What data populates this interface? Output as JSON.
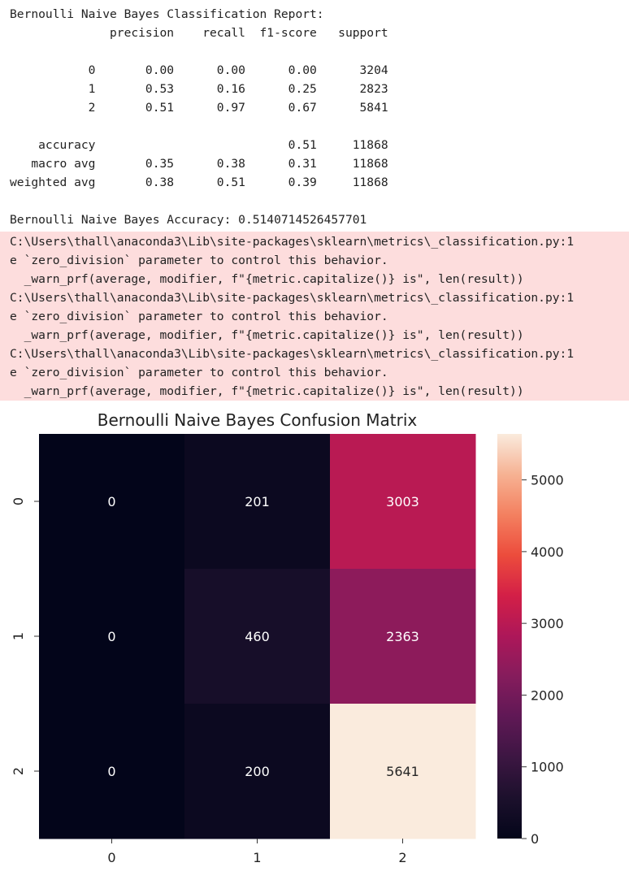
{
  "report": {
    "lines": [
      "Bernoulli Naive Bayes Classification Report:",
      "              precision    recall  f1-score   support",
      "",
      "           0       0.00      0.00      0.00      3204",
      "           1       0.53      0.16      0.25      2823",
      "           2       0.51      0.97      0.67      5841",
      "",
      "    accuracy                           0.51     11868",
      "   macro avg       0.35      0.38      0.31     11868",
      "weighted avg       0.38      0.51      0.39     11868",
      "",
      "Bernoulli Naive Bayes Accuracy: 0.5140714526457701"
    ]
  },
  "warnings": {
    "lines": [
      "C:\\Users\\thall\\anaconda3\\Lib\\site-packages\\sklearn\\metrics\\_classification.py:1",
      "e `zero_division` parameter to control this behavior.",
      "  _warn_prf(average, modifier, f\"{metric.capitalize()} is\", len(result))",
      "C:\\Users\\thall\\anaconda3\\Lib\\site-packages\\sklearn\\metrics\\_classification.py:1",
      "e `zero_division` parameter to control this behavior.",
      "  _warn_prf(average, modifier, f\"{metric.capitalize()} is\", len(result))",
      "C:\\Users\\thall\\anaconda3\\Lib\\site-packages\\sklearn\\metrics\\_classification.py:1",
      "e `zero_division` parameter to control this behavior.",
      "  _warn_prf(average, modifier, f\"{metric.capitalize()} is\", len(result))"
    ],
    "background": "#fddddd"
  },
  "chart_data": {
    "type": "heatmap",
    "title": "Bernoulli Naive Bayes Confusion Matrix",
    "x_categories": [
      "0",
      "1",
      "2"
    ],
    "y_categories": [
      "0",
      "1",
      "2"
    ],
    "matrix": [
      [
        0,
        201,
        3003
      ],
      [
        0,
        460,
        2363
      ],
      [
        0,
        200,
        5641
      ]
    ],
    "colorbar": {
      "range": [
        0,
        5641
      ],
      "ticks": [
        0,
        1000,
        2000,
        3000,
        4000,
        5000
      ],
      "colormap": "rocket"
    },
    "xlabel": "",
    "ylabel": ""
  }
}
